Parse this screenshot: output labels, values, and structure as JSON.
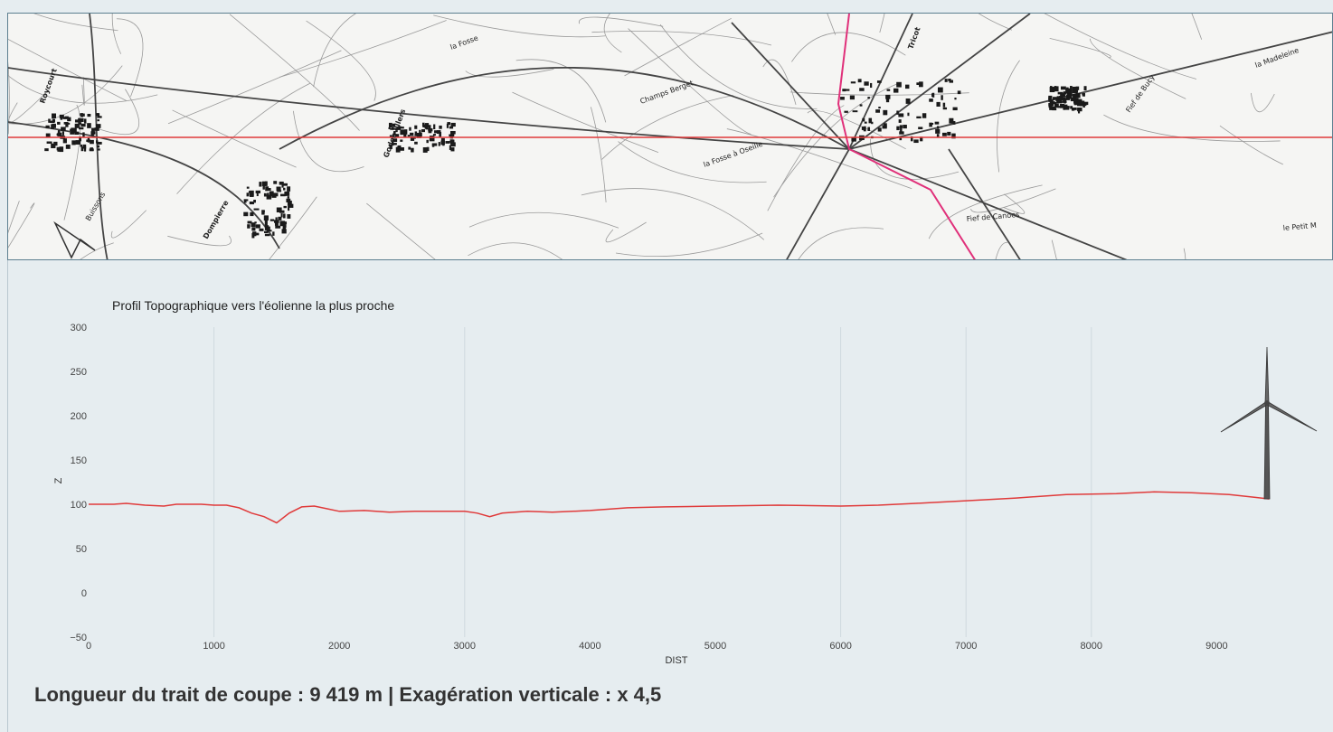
{
  "map": {
    "place_labels": [
      "Roycourt",
      "Dompierre",
      "Godenvillers",
      "Tricot",
      "Champs Berget",
      "la Fosse à Oseille",
      "Fief de Canoes",
      "Fief de Bucy",
      "le Petit M",
      "la Madeleine",
      "la Fosse",
      "Buissons"
    ]
  },
  "chart_data": {
    "type": "line",
    "title": "Profil Topographique vers l'éolienne la plus proche",
    "xlabel": "DIST",
    "ylabel": "Z",
    "xlim": [
      0,
      10000
    ],
    "ylim": [
      -50,
      300
    ],
    "x_ticks": [
      "0",
      "1000",
      "2000",
      "3000",
      "4000",
      "5000",
      "6000",
      "7000",
      "8000",
      "9000"
    ],
    "y_ticks": [
      "300",
      "250",
      "200",
      "150",
      "100",
      "50",
      "0",
      "−50"
    ],
    "series": [
      {
        "color": "#e03a3a",
        "x": [
          0,
          200,
          300,
          450,
          600,
          700,
          900,
          1000,
          1100,
          1200,
          1300,
          1400,
          1500,
          1600,
          1700,
          1800,
          1900,
          2000,
          2200,
          2400,
          2600,
          2800,
          3000,
          3100,
          3200,
          3300,
          3500,
          3700,
          4000,
          4300,
          4600,
          5000,
          5500,
          6000,
          6300,
          6600,
          7000,
          7400,
          7800,
          8200,
          8500,
          8800,
          9100,
          9300,
          9419
        ],
        "y": [
          100,
          100,
          101,
          99,
          98,
          100,
          100,
          99,
          99,
          96,
          90,
          86,
          79,
          90,
          97,
          98,
          95,
          92,
          93,
          91,
          92,
          92,
          92,
          90,
          86,
          90,
          92,
          91,
          93,
          96,
          97,
          98,
          99,
          98,
          99,
          101,
          104,
          107,
          111,
          112,
          114,
          113,
          111,
          108,
          106
        ]
      }
    ],
    "grid": "vertical-at-1000,3000,6000,7000,8000",
    "annotation_icon": "wind-turbine"
  },
  "footer": {
    "text": "Longueur du trait de coupe : 9 419 m  |  Exagération verticale : x 4,5"
  }
}
